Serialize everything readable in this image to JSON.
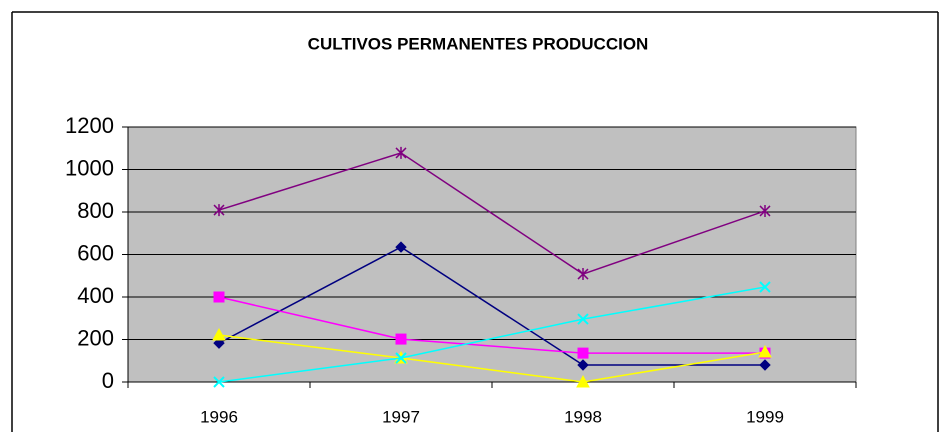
{
  "chart_data": {
    "type": "line",
    "title": "CULTIVOS PERMANENTES  PRODUCCION",
    "categories": [
      "1996",
      "1997",
      "1998",
      "1999"
    ],
    "series": [
      {
        "color": "#000080",
        "marker": "diamond",
        "values": [
          183,
          635,
          80,
          80
        ]
      },
      {
        "color": "#ff00ff",
        "marker": "square",
        "values": [
          400,
          202,
          136,
          136
        ]
      },
      {
        "color": "#ffff00",
        "marker": "triangle",
        "values": [
          221,
          113,
          0,
          141
        ]
      },
      {
        "color": "#00ffff",
        "marker": "x",
        "values": [
          0,
          113,
          296,
          447
        ]
      },
      {
        "color": "#800080",
        "marker": "star",
        "values": [
          809,
          1078,
          508,
          805
        ]
      }
    ],
    "ylim": [
      0,
      1200
    ],
    "yticks": [
      0,
      200,
      400,
      600,
      800,
      1000,
      1200
    ],
    "grid": true,
    "plot_background": "#c0c0c0"
  }
}
